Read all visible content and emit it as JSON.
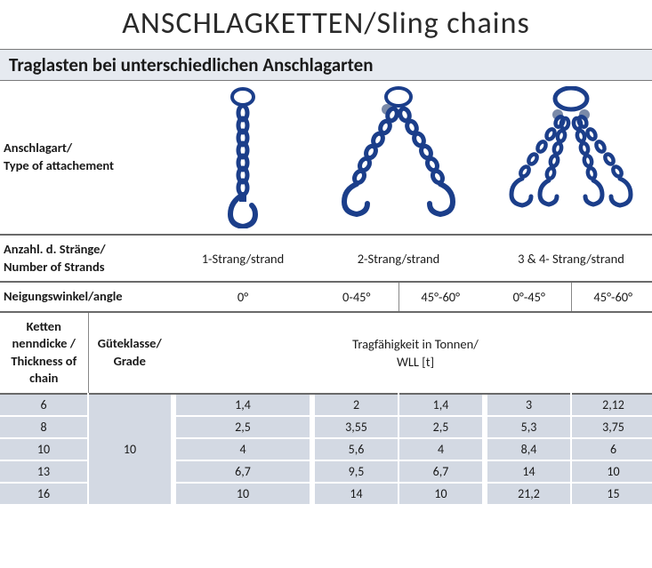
{
  "title": "ANSCHLAGKETTEN/Sling chains",
  "subtitle": "Traglasten bei unterschiedlichen Anschlagarten",
  "labels": {
    "attachment": "Anschlagart/\nType of attachement",
    "strands": "Anzahl. d. Stränge/\nNumber of Strands",
    "angle": "Neigungswinkel/angle",
    "thickness": "Ketten nenndicke / Thickness of chain",
    "grade": "Güteklasse/ Grade",
    "wll": "Tragfähigkeit in Tonnen/\nWLL [t]"
  },
  "strand_headers": {
    "s1": "1-Strang/strand",
    "s2": "2-Strang/strand",
    "s3": "3 & 4- Strang/strand"
  },
  "angle_headers": {
    "a0": "0°",
    "a45": "0-45°",
    "a60": "45°-60°",
    "b45": "0°-45°",
    "b60": "45°-60°"
  },
  "grade_value": "10",
  "chain_colors": {
    "chain": "#1b3e8a",
    "highlight": "#3f6fc8"
  },
  "table": {
    "rows": [
      {
        "thickness": "6",
        "v": [
          "1,4",
          "2",
          "1,4",
          "3",
          "2,12"
        ]
      },
      {
        "thickness": "8",
        "v": [
          "2,5",
          "3,55",
          "2,5",
          "5,3",
          "3,75"
        ]
      },
      {
        "thickness": "10",
        "v": [
          "4",
          "5,6",
          "4",
          "8,4",
          "6"
        ]
      },
      {
        "thickness": "13",
        "v": [
          "6,7",
          "9,5",
          "6,7",
          "14",
          "10"
        ]
      },
      {
        "thickness": "16",
        "v": [
          "10",
          "14",
          "10",
          "21,2",
          "15"
        ]
      }
    ]
  },
  "styling": {
    "band_bg": "#d3d9e3",
    "subtitle_bg": "#e6eaf0",
    "border_color": "#6a6a6a",
    "title_fontsize": 34,
    "body_fontsize": 14.5
  }
}
